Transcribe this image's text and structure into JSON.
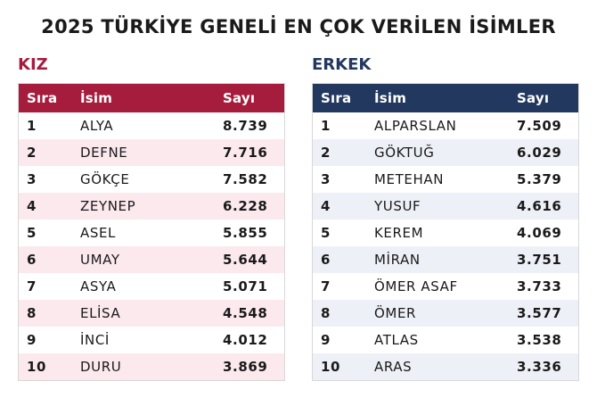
{
  "title": "2025 TÜRKİYE GENELİ EN ÇOK VERİLEN İSİMLER",
  "tables": [
    {
      "label": "KIZ",
      "color": "#a51c3c",
      "stripe": "#fbe9ee",
      "headers": [
        "Sıra",
        "İsim",
        "Sayı"
      ],
      "rows": [
        [
          "1",
          "ALYA",
          "8.739"
        ],
        [
          "2",
          "DEFNE",
          "7.716"
        ],
        [
          "3",
          "GÖKÇE",
          "7.582"
        ],
        [
          "4",
          "ZEYNEP",
          "6.228"
        ],
        [
          "5",
          "ASEL",
          "5.855"
        ],
        [
          "6",
          "UMAY",
          "5.644"
        ],
        [
          "7",
          "ASYA",
          "5.071"
        ],
        [
          "8",
          "ELİSA",
          "4.548"
        ],
        [
          "9",
          "İNCİ",
          "4.012"
        ],
        [
          "10",
          "DURU",
          "3.869"
        ]
      ]
    },
    {
      "label": "ERKEK",
      "color": "#22385e",
      "stripe": "#edf0f6",
      "headers": [
        "Sıra",
        "İsim",
        "Sayı"
      ],
      "rows": [
        [
          "1",
          "ALPARSLAN",
          "7.509"
        ],
        [
          "2",
          "GÖKTUĞ",
          "6.029"
        ],
        [
          "3",
          "METEHAN",
          "5.379"
        ],
        [
          "4",
          "YUSUF",
          "4.616"
        ],
        [
          "5",
          "KEREM",
          "4.069"
        ],
        [
          "6",
          "MİRAN",
          "3.751"
        ],
        [
          "7",
          "ÖMER ASAF",
          "3.733"
        ],
        [
          "8",
          "ÖMER",
          "3.577"
        ],
        [
          "9",
          "ATLAS",
          "3.538"
        ],
        [
          "10",
          "ARAS",
          "3.336"
        ]
      ]
    }
  ]
}
